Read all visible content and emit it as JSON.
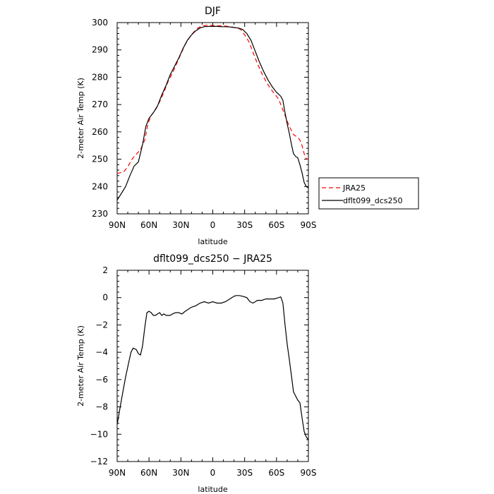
{
  "chart_data": [
    {
      "type": "line",
      "title": "DJF",
      "xlabel": "latitude",
      "ylabel": "2-meter Air Temp (K)",
      "xlim": [
        -90,
        90
      ],
      "ylim": [
        230,
        300
      ],
      "x_ticks": [
        -90,
        -60,
        -30,
        0,
        30,
        60,
        90
      ],
      "x_tick_labels": [
        "90N",
        "60N",
        "30N",
        "0",
        "30S",
        "60S",
        "90S"
      ],
      "y_ticks": [
        230,
        240,
        250,
        260,
        270,
        280,
        290,
        300
      ],
      "y_tick_labels": [
        "230",
        "240",
        "250",
        "260",
        "270",
        "280",
        "290",
        "300"
      ],
      "legend_position": "right",
      "series": [
        {
          "name": "JRA25",
          "color": "#ff0000",
          "dash": "dashed",
          "x": [
            -90,
            -84,
            -80,
            -76,
            -72,
            -68,
            -64,
            -61,
            -58,
            -54,
            -50,
            -46,
            -42,
            -38,
            -34,
            -30,
            -26,
            -22,
            -18,
            -14,
            -10,
            -6,
            -2,
            2,
            6,
            10,
            14,
            18,
            22,
            26,
            30,
            34,
            38,
            42,
            46,
            50,
            54,
            58,
            62,
            66,
            68,
            70,
            72,
            74,
            76,
            78,
            80,
            82,
            84,
            86,
            88,
            90
          ],
          "y": [
            244.8,
            245.3,
            247.2,
            250.0,
            251.8,
            253.5,
            257.0,
            263.0,
            266.0,
            268.0,
            271.0,
            274.5,
            278.5,
            281.5,
            285.0,
            288.5,
            292.0,
            294.5,
            296.5,
            298.0,
            298.8,
            299.0,
            299.0,
            298.9,
            298.8,
            298.8,
            298.6,
            298.4,
            298.0,
            297.6,
            295.5,
            293.0,
            289.0,
            285.0,
            281.5,
            278.5,
            276.0,
            274.0,
            272.0,
            268.0,
            266.0,
            264.0,
            262.0,
            260.5,
            259.0,
            258.5,
            258.0,
            257.0,
            255.0,
            252.0,
            250.2,
            250.0
          ]
        },
        {
          "name": "dflt099_dcs250",
          "color": "#000000",
          "dash": "solid",
          "x": [
            -90,
            -86,
            -82,
            -78,
            -74,
            -70,
            -66,
            -63,
            -60,
            -56,
            -52,
            -48,
            -44,
            -40,
            -36,
            -32,
            -28,
            -24,
            -20,
            -16,
            -12,
            -8,
            -4,
            0,
            4,
            8,
            12,
            16,
            20,
            24,
            28,
            32,
            36,
            40,
            44,
            48,
            52,
            56,
            60,
            64,
            66,
            68,
            70,
            72,
            74,
            76,
            78,
            80,
            82,
            84,
            86,
            88,
            90
          ],
          "y": [
            235.0,
            237.5,
            240.0,
            244.0,
            247.5,
            249.0,
            255.5,
            262.0,
            265.0,
            267.0,
            269.5,
            273.5,
            277.0,
            281.0,
            284.0,
            287.0,
            290.5,
            293.5,
            295.5,
            297.0,
            298.0,
            298.5,
            298.6,
            298.6,
            298.6,
            298.5,
            298.5,
            298.4,
            298.2,
            298.0,
            297.5,
            296.0,
            293.5,
            289.5,
            285.5,
            282.0,
            279.0,
            276.5,
            274.5,
            273.0,
            271.5,
            267.0,
            263.0,
            259.5,
            255.5,
            252.0,
            251.0,
            250.5,
            248.0,
            245.0,
            241.5,
            240.0,
            239.5
          ]
        }
      ]
    },
    {
      "type": "line",
      "title": "dflt099_dcs250 − JRA25",
      "xlabel": "latitude",
      "ylabel": "2-meter Air Temp (K)",
      "xlim": [
        -90,
        90
      ],
      "ylim": [
        -12,
        2
      ],
      "x_ticks": [
        -90,
        -60,
        -30,
        0,
        30,
        60,
        90
      ],
      "x_tick_labels": [
        "90N",
        "60N",
        "30N",
        "0",
        "30S",
        "60S",
        "90S"
      ],
      "y_ticks": [
        -12,
        -10,
        -8,
        -6,
        -4,
        -2,
        0,
        2
      ],
      "y_tick_labels": [
        "−12",
        "−10",
        "−8",
        "−6",
        "−4",
        "−2",
        "0",
        "2"
      ],
      "series": [
        {
          "color": "#000000",
          "dash": "solid",
          "x": [
            -90,
            -86,
            -82,
            -79,
            -77,
            -75,
            -72,
            -70,
            -68,
            -66,
            -64,
            -62,
            -60,
            -58,
            -56,
            -54,
            -52,
            -50,
            -48,
            -46,
            -44,
            -42,
            -40,
            -38,
            -35,
            -32,
            -29,
            -26,
            -24,
            -20,
            -16,
            -12,
            -8,
            -4,
            0,
            4,
            8,
            12,
            16,
            20,
            22,
            25,
            28,
            32,
            35,
            38,
            42,
            46,
            50,
            54,
            58,
            62,
            64,
            66,
            68,
            70,
            72,
            74,
            76,
            78,
            80,
            82,
            84,
            86,
            88,
            90
          ],
          "y": [
            -9.3,
            -7.5,
            -5.8,
            -4.7,
            -4.0,
            -3.7,
            -3.8,
            -4.1,
            -4.2,
            -3.5,
            -2.2,
            -1.1,
            -1.0,
            -1.1,
            -1.3,
            -1.3,
            -1.2,
            -1.1,
            -1.3,
            -1.2,
            -1.3,
            -1.3,
            -1.3,
            -1.2,
            -1.1,
            -1.1,
            -1.2,
            -1.0,
            -0.9,
            -0.7,
            -0.6,
            -0.4,
            -0.3,
            -0.4,
            -0.3,
            -0.4,
            -0.4,
            -0.3,
            -0.1,
            0.1,
            0.15,
            0.15,
            0.1,
            0.0,
            -0.3,
            -0.4,
            -0.2,
            -0.2,
            -0.1,
            -0.1,
            -0.1,
            0.0,
            0.05,
            -0.4,
            -2.0,
            -3.4,
            -4.5,
            -5.7,
            -6.9,
            -7.2,
            -7.5,
            -7.7,
            -8.8,
            -9.8,
            -10.2,
            -10.4
          ]
        }
      ]
    }
  ]
}
